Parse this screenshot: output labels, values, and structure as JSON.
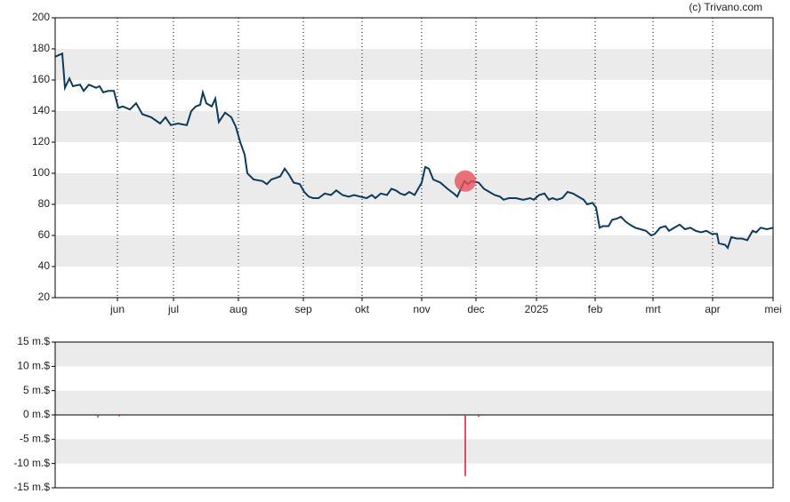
{
  "chart_data": [
    {
      "type": "line",
      "credit": "(c) Trivano.com",
      "color": "#0d3b5e",
      "x": [
        0,
        8,
        11,
        16,
        20,
        28,
        32,
        38,
        46,
        50,
        54,
        60,
        66,
        71,
        76,
        84,
        91,
        98,
        108,
        118,
        124,
        130,
        138,
        148,
        153,
        158,
        163,
        166,
        170,
        176,
        180,
        184,
        191,
        198,
        203,
        208,
        213,
        216,
        223,
        233,
        238,
        243,
        248,
        253,
        258,
        263,
        268,
        275,
        280,
        285,
        290,
        296,
        303,
        310,
        316,
        323,
        330,
        336,
        343,
        350,
        356,
        360,
        366,
        373,
        378,
        383,
        388,
        393,
        398,
        404,
        408,
        412,
        416,
        420,
        425,
        433,
        441,
        448,
        452,
        456,
        460,
        464,
        468,
        476,
        482,
        488,
        494,
        500,
        504,
        510,
        518,
        526,
        534,
        538,
        544,
        550,
        555,
        559,
        564,
        570,
        576,
        582,
        588,
        594,
        598,
        604,
        608,
        612,
        616,
        622,
        626,
        632,
        636,
        641,
        646,
        652,
        658,
        664,
        670,
        674,
        680,
        686,
        690,
        696,
        702,
        708,
        714,
        720,
        726,
        732,
        738,
        744,
        746,
        753,
        756,
        760,
        766,
        772,
        778,
        784,
        788,
        793,
        800,
        807
      ],
      "values": [
        175,
        177,
        155,
        161,
        156,
        157,
        153,
        157,
        155,
        156,
        152,
        153,
        153,
        142,
        143,
        141,
        145,
        138,
        136,
        132,
        136,
        131,
        132,
        131,
        140,
        143,
        144,
        152,
        145,
        143,
        148,
        133,
        139,
        136,
        130,
        120,
        112,
        100,
        96,
        95,
        93,
        96,
        97,
        98,
        103,
        99,
        94,
        93,
        88,
        85,
        84,
        84,
        87,
        86,
        89,
        86,
        85,
        86,
        85,
        84,
        86,
        84,
        87,
        86,
        90,
        89,
        87,
        86,
        88,
        86,
        90,
        94,
        104,
        103,
        96,
        94,
        90,
        87,
        85,
        90,
        95,
        93,
        95,
        94,
        90,
        88,
        86,
        85,
        83,
        84,
        84,
        83,
        84,
        83,
        86,
        87,
        83,
        84,
        83,
        84,
        88,
        87,
        85,
        83,
        80,
        81,
        78,
        65,
        66,
        66,
        70,
        71,
        72,
        69,
        67,
        65,
        64,
        63,
        60,
        61,
        65,
        66,
        63,
        65,
        67,
        64,
        65,
        63,
        62,
        63,
        61,
        61,
        55,
        54,
        52,
        59,
        58,
        58,
        57,
        63,
        62,
        65,
        64,
        65
      ],
      "highlight": {
        "x": 461,
        "y": 95,
        "color": "#e8505b"
      },
      "xlim": [
        0,
        807
      ],
      "xticks": [
        {
          "value": 70,
          "label": "jun"
        },
        {
          "value": 133,
          "label": "jul"
        },
        {
          "value": 206,
          "label": "aug"
        },
        {
          "value": 279,
          "label": "sep"
        },
        {
          "value": 345,
          "label": "okt"
        },
        {
          "value": 412,
          "label": "nov"
        },
        {
          "value": 473,
          "label": "dec"
        },
        {
          "value": 541,
          "label": "2025"
        },
        {
          "value": 607,
          "label": "feb"
        },
        {
          "value": 672,
          "label": "mrt"
        },
        {
          "value": 739,
          "label": "apr"
        },
        {
          "value": 807,
          "label": "mei"
        }
      ],
      "ylim": [
        20,
        200
      ],
      "yticks": [
        20,
        40,
        60,
        80,
        100,
        120,
        140,
        160,
        180,
        200
      ],
      "grid": true
    },
    {
      "type": "bar",
      "color": "#cc1f2f",
      "x": [
        48,
        72,
        461,
        476
      ],
      "values": [
        -0.5,
        -0.3,
        -12.6,
        -0.4
      ],
      "xlim": [
        0,
        807
      ],
      "ylim": [
        -15,
        15
      ],
      "yticks": [
        {
          "value": -15,
          "label": "-15 m.$"
        },
        {
          "value": -10,
          "label": "-10 m.$"
        },
        {
          "value": -5,
          "label": "-5 m.$"
        },
        {
          "value": 0,
          "label": "0 m.$"
        },
        {
          "value": 5,
          "label": "5 m.$"
        },
        {
          "value": 10,
          "label": "10 m.$"
        },
        {
          "value": 15,
          "label": "15 m.$"
        }
      ]
    }
  ]
}
